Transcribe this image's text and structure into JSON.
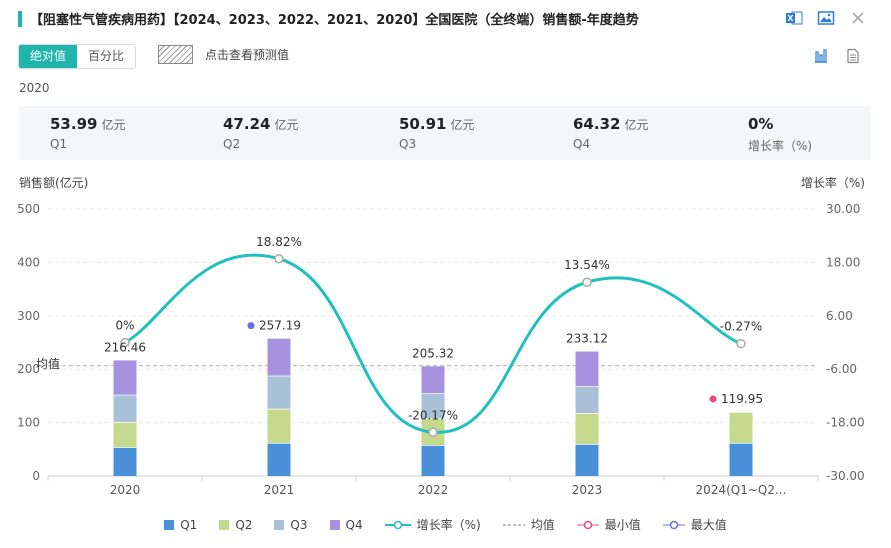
{
  "header": {
    "title": "【阻塞性气管疾病用药】【2024、2023、2022、2021、2020】全国医院（全终端）销售额-年度趋势"
  },
  "toolbar": {
    "absolute_label": "绝对值",
    "percent_label": "百分比",
    "forecast_label": "点击查看预测值"
  },
  "summary": {
    "year": "2020",
    "cards": [
      {
        "value": "53.99",
        "unit": "亿元",
        "label": "Q1"
      },
      {
        "value": "47.24",
        "unit": "亿元",
        "label": "Q2"
      },
      {
        "value": "50.91",
        "unit": "亿元",
        "label": "Q3"
      },
      {
        "value": "64.32",
        "unit": "亿元",
        "label": "Q4"
      },
      {
        "value": "0%",
        "unit": "",
        "label": "增长率（%)"
      }
    ]
  },
  "chart_data": {
    "type": "bar",
    "stacked": true,
    "categories": [
      "2020",
      "2021",
      "2022",
      "2023",
      "2024(Q1~Q2..."
    ],
    "series": [
      {
        "name": "Q1",
        "color": "#4a90d9",
        "values": [
          53.99,
          62.0,
          58.0,
          60.0,
          62.0
        ]
      },
      {
        "name": "Q2",
        "color": "#c5d98c",
        "values": [
          47.24,
          64.0,
          50.0,
          58.0,
          57.95
        ]
      },
      {
        "name": "Q3",
        "color": "#a8c0d8",
        "values": [
          50.91,
          62.0,
          47.0,
          50.0,
          0
        ]
      },
      {
        "name": "Q4",
        "color": "#a792e0",
        "values": [
          64.32,
          69.19,
          50.32,
          65.12,
          0
        ]
      }
    ],
    "totals": [
      216.46,
      257.19,
      205.32,
      233.12,
      119.95
    ],
    "total_labels": [
      "216.46",
      "257.19",
      "205.32",
      "233.12",
      "119.95"
    ],
    "growth": {
      "name": "增长率（%)",
      "color": "#1fc0bd",
      "values": [
        0,
        18.82,
        -20.17,
        13.54,
        -0.27
      ],
      "labels": [
        "0%",
        "18.82%",
        "-20.17%",
        "13.54%",
        "-0.27%"
      ]
    },
    "average": {
      "name": "均值",
      "label": "均值",
      "value": 206.41
    },
    "min": {
      "name": "最小值",
      "index": 4,
      "color": "#e84a7f"
    },
    "max": {
      "name": "最大值",
      "index": 1,
      "color": "#6b6ee0"
    },
    "ylabel": "销售额(亿元)",
    "y2label": "增长率（%)",
    "ylim": [
      0,
      500
    ],
    "y_ticks": [
      "0",
      "100",
      "200",
      "300",
      "400",
      "500"
    ],
    "y2lim": [
      -30,
      30
    ],
    "y2_ticks": [
      "-30.00",
      "-18.00",
      "-6.00",
      "6.00",
      "18.00",
      "30.00"
    ],
    "grid": true,
    "legend_position": "bottom"
  }
}
